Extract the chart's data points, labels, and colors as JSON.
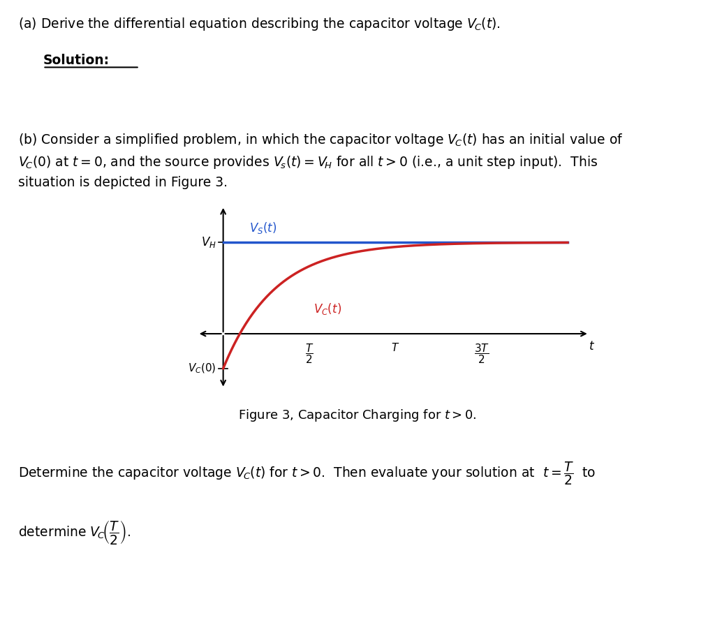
{
  "bg_color": "#ffffff",
  "text_color": "#000000",
  "blue_color": "#2255cc",
  "red_color": "#cc2222",
  "VH": 1.0,
  "VC0": -0.38,
  "tau": 0.6,
  "x_min": -0.35,
  "x_max": 4.3,
  "y_min": -0.65,
  "y_max": 1.45,
  "T_half": 1.0,
  "T_val": 2.0,
  "T_3half": 3.0
}
